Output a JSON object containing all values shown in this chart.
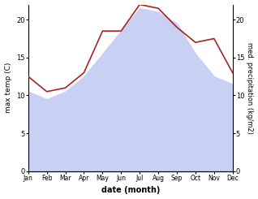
{
  "months": [
    "Jan",
    "Feb",
    "Mar",
    "Apr",
    "May",
    "Jun",
    "Jul",
    "Aug",
    "Sep",
    "Oct",
    "Nov",
    "Dec"
  ],
  "max_temp": [
    10.5,
    9.5,
    10.5,
    12.5,
    15.5,
    18.5,
    21.5,
    21.0,
    19.5,
    15.5,
    12.5,
    11.5
  ],
  "precipitation": [
    12.5,
    10.5,
    11.0,
    13.0,
    18.5,
    18.5,
    22.0,
    21.5,
    19.0,
    17.0,
    17.5,
    13.0
  ],
  "temp_fill_color": "#c8d0f4",
  "precip_color": "#aa2222",
  "temp_ylim": [
    0,
    22
  ],
  "precip_ylim": [
    0,
    22
  ],
  "ylabel_left": "max temp (C)",
  "ylabel_right": "med. precipitation (kg/m2)",
  "xlabel": "date (month)",
  "yticks_left": [
    0,
    5,
    10,
    15,
    20
  ],
  "yticks_right": [
    0,
    5,
    10,
    15,
    20
  ],
  "background_color": "#ffffff"
}
